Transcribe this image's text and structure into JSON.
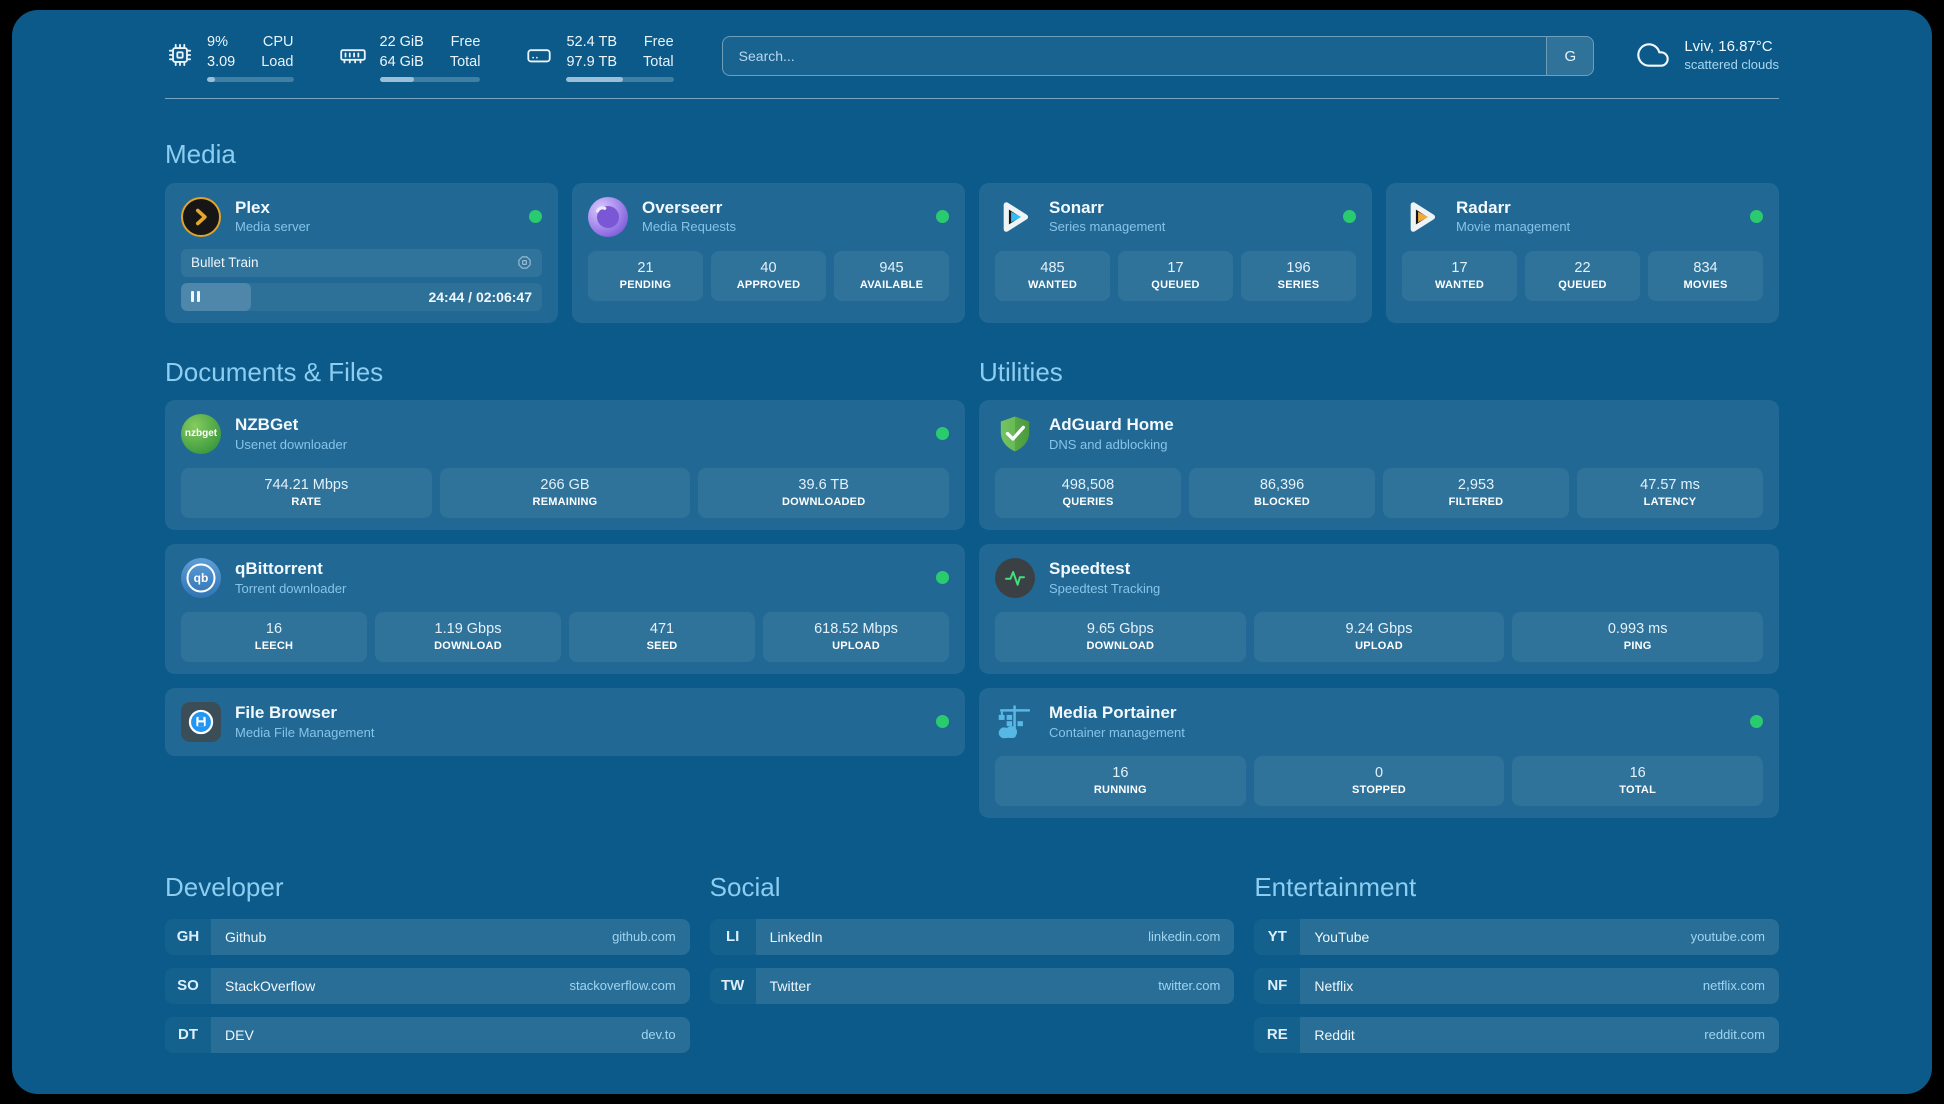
{
  "colors": {
    "background": "#0b5a89",
    "card": "#1e6b99",
    "heading_text": "#8ccdf1",
    "status_online": "#2acb6e"
  },
  "topbar": {
    "stats": [
      {
        "icon": "cpu-icon",
        "value_top": "9%",
        "value_bottom": "3.09",
        "label_top": "CPU",
        "label_bottom": "Load",
        "progress_pct": 9
      },
      {
        "icon": "memory-icon",
        "value_top": "22 GiB",
        "value_bottom": "64 GiB",
        "label_top": "Free",
        "label_bottom": "Total",
        "progress_pct": 34
      },
      {
        "icon": "disk-icon",
        "value_top": "52.4 TB",
        "value_bottom": "97.9 TB",
        "label_top": "Free",
        "label_bottom": "Total",
        "progress_pct": 53
      }
    ],
    "search": {
      "placeholder": "Search...",
      "engine_label": "G"
    },
    "weather": {
      "icon": "cloud-icon",
      "location_temp": "Lviv, 16.87°C",
      "condition": "scattered clouds"
    }
  },
  "media": {
    "heading": "Media",
    "plex": {
      "icon": "plex-icon",
      "name": "Plex",
      "desc": "Media server",
      "status": "online",
      "now_playing": "Bullet Train",
      "time": "24:44 / 02:06:47",
      "progress_pct": 19.5
    },
    "overseerr": {
      "icon": "overseerr-icon",
      "name": "Overseerr",
      "desc": "Media Requests",
      "status": "online",
      "stats": [
        {
          "value": "21",
          "label": "PENDING"
        },
        {
          "value": "40",
          "label": "APPROVED"
        },
        {
          "value": "945",
          "label": "AVAILABLE"
        }
      ]
    },
    "sonarr": {
      "icon": "sonarr-icon",
      "name": "Sonarr",
      "desc": "Series management",
      "status": "online",
      "stats": [
        {
          "value": "485",
          "label": "WANTED"
        },
        {
          "value": "17",
          "label": "QUEUED"
        },
        {
          "value": "196",
          "label": "SERIES"
        }
      ]
    },
    "radarr": {
      "icon": "radarr-icon",
      "name": "Radarr",
      "desc": "Movie management",
      "status": "online",
      "stats": [
        {
          "value": "17",
          "label": "WANTED"
        },
        {
          "value": "22",
          "label": "QUEUED"
        },
        {
          "value": "834",
          "label": "MOVIES"
        }
      ]
    }
  },
  "documents": {
    "heading": "Documents & Files",
    "nzbget": {
      "icon": "nzbget-icon",
      "icon_text": "nzbget",
      "name": "NZBGet",
      "desc": "Usenet downloader",
      "status": "online",
      "stats": [
        {
          "value": "744.21 Mbps",
          "label": "RATE"
        },
        {
          "value": "266 GB",
          "label": "REMAINING"
        },
        {
          "value": "39.6 TB",
          "label": "DOWNLOADED"
        }
      ]
    },
    "qbittorrent": {
      "icon": "qbittorrent-icon",
      "icon_text": "qb",
      "name": "qBittorrent",
      "desc": "Torrent downloader",
      "status": "online",
      "stats": [
        {
          "value": "16",
          "label": "LEECH"
        },
        {
          "value": "1.19 Gbps",
          "label": "DOWNLOAD"
        },
        {
          "value": "471",
          "label": "SEED"
        },
        {
          "value": "618.52 Mbps",
          "label": "UPLOAD"
        }
      ]
    },
    "filebrowser": {
      "icon": "filebrowser-icon",
      "name": "File Browser",
      "desc": "Media File Management",
      "status": "online"
    }
  },
  "utilities": {
    "heading": "Utilities",
    "adguard": {
      "icon": "adguard-icon",
      "name": "AdGuard Home",
      "desc": "DNS and adblocking",
      "stats": [
        {
          "value": "498,508",
          "label": "QUERIES"
        },
        {
          "value": "86,396",
          "label": "BLOCKED"
        },
        {
          "value": "2,953",
          "label": "FILTERED"
        },
        {
          "value": "47.57 ms",
          "label": "LATENCY"
        }
      ]
    },
    "speedtest": {
      "icon": "speedtest-icon",
      "name": "Speedtest",
      "desc": "Speedtest Tracking",
      "stats": [
        {
          "value": "9.65 Gbps",
          "label": "DOWNLOAD"
        },
        {
          "value": "9.24 Gbps",
          "label": "UPLOAD"
        },
        {
          "value": "0.993 ms",
          "label": "PING"
        }
      ]
    },
    "portainer": {
      "icon": "portainer-icon",
      "name": "Media Portainer",
      "desc": "Container management",
      "status": "online",
      "stats": [
        {
          "value": "16",
          "label": "RUNNING"
        },
        {
          "value": "0",
          "label": "STOPPED"
        },
        {
          "value": "16",
          "label": "TOTAL"
        }
      ]
    }
  },
  "links": {
    "developer": {
      "heading": "Developer",
      "items": [
        {
          "abbr": "GH",
          "name": "Github",
          "url": "github.com"
        },
        {
          "abbr": "SO",
          "name": "StackOverflow",
          "url": "stackoverflow.com"
        },
        {
          "abbr": "DT",
          "name": "DEV",
          "url": "dev.to"
        }
      ]
    },
    "social": {
      "heading": "Social",
      "items": [
        {
          "abbr": "LI",
          "name": "LinkedIn",
          "url": "linkedin.com"
        },
        {
          "abbr": "TW",
          "name": "Twitter",
          "url": "twitter.com"
        }
      ]
    },
    "entertainment": {
      "heading": "Entertainment",
      "items": [
        {
          "abbr": "YT",
          "name": "YouTube",
          "url": "youtube.com"
        },
        {
          "abbr": "NF",
          "name": "Netflix",
          "url": "netflix.com"
        },
        {
          "abbr": "RE",
          "name": "Reddit",
          "url": "reddit.com"
        }
      ]
    }
  }
}
